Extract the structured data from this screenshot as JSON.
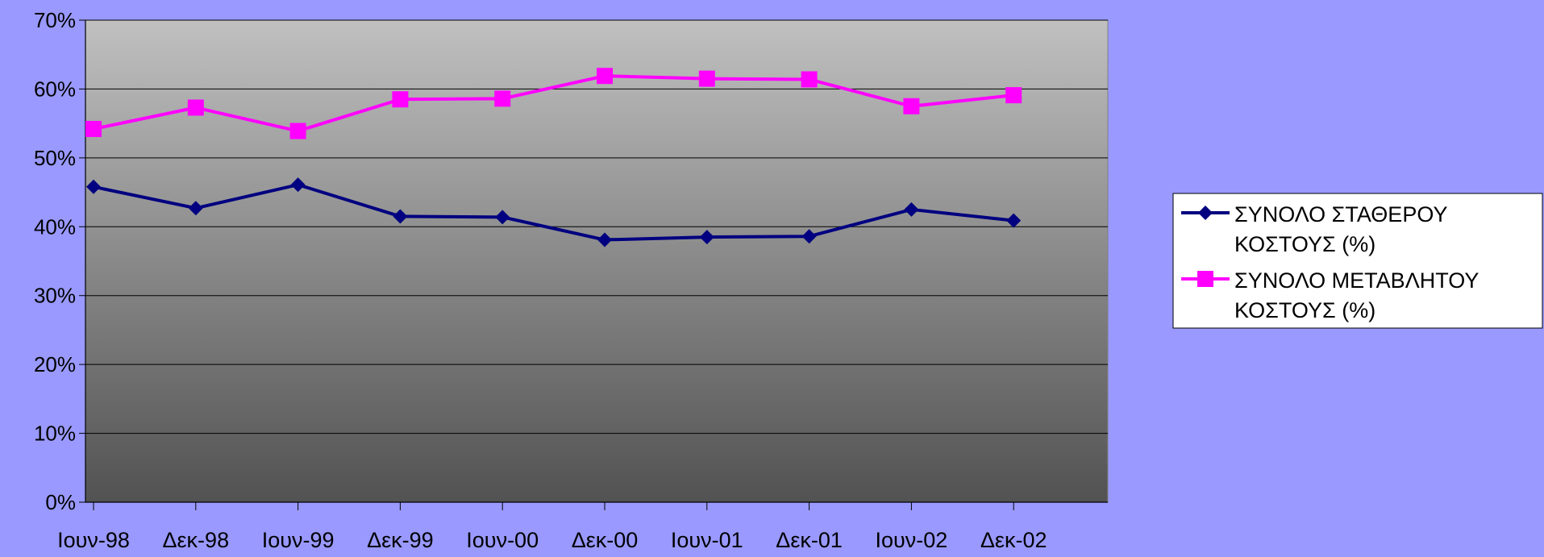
{
  "chart_data": {
    "type": "line",
    "title": "",
    "xlabel": "",
    "ylabel": "",
    "categories": [
      "Ιουν-98",
      "Δεκ-98",
      "Ιουν-99",
      "Δεκ-99",
      "Ιουν-00",
      "Δεκ-00",
      "Ιουν-01",
      "Δεκ-01",
      "Ιουν-02",
      "Δεκ-02"
    ],
    "ylim": [
      0,
      70
    ],
    "yticks": [
      0,
      10,
      20,
      30,
      40,
      50,
      60,
      70
    ],
    "ytick_labels": [
      "0%",
      "10%",
      "20%",
      "30%",
      "40%",
      "50%",
      "60%",
      "70%"
    ],
    "grid": true,
    "legend_position": "right",
    "series": [
      {
        "name": "ΣΥΝΟΛΟ ΣΤΑΘΕΡΟΥ ΚΟΣΤΟΥΣ (%)",
        "name_lines": [
          "ΣΥΝΟΛΟ ΣΤΑΘΕΡΟΥ",
          "ΚΟΣΤΟΥΣ (%)"
        ],
        "color": "#000080",
        "marker": "diamond",
        "values": [
          45.8,
          42.7,
          46.1,
          41.5,
          41.4,
          38.1,
          38.5,
          38.6,
          42.5,
          40.9
        ]
      },
      {
        "name": "ΣΥΝΟΛΟ ΜΕΤΑΒΛΗΤΟΥ ΚΟΣΤΟΥΣ (%)",
        "name_lines": [
          "ΣΥΝΟΛΟ ΜΕΤΑΒΛΗΤΟΥ",
          "ΚΟΣΤΟΥΣ (%)"
        ],
        "color": "#ff00ff",
        "marker": "square",
        "values": [
          54.2,
          57.3,
          53.9,
          58.5,
          58.6,
          61.9,
          61.5,
          61.4,
          57.5,
          59.1
        ]
      }
    ],
    "colors": {
      "background": "#9999ff",
      "plot_top": "#c0c0c0",
      "plot_bottom": "#525252",
      "gridline": "#000000",
      "legend_bg": "#ffffff"
    }
  }
}
